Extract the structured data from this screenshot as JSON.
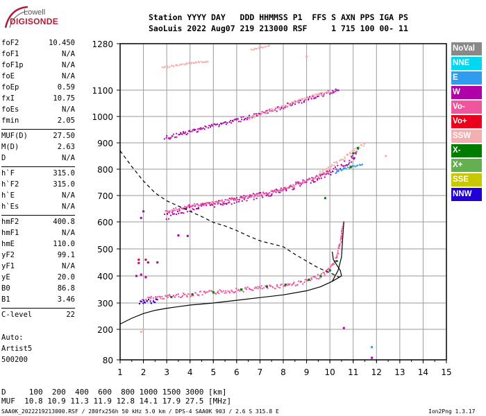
{
  "logo": {
    "line1": "Lowell",
    "line2": "DIGISONDE"
  },
  "header": {
    "row1": "Station YYYY DAY   DDD HHMMSS P1  FFS S AXN PPS IGA PS",
    "row2": "SaoLuis 2022 Aug07 219 213000 RSF     1 715 100 00- 11"
  },
  "params": [
    {
      "label": "foF2",
      "value": "10.450"
    },
    {
      "label": "foF1",
      "value": "N/A"
    },
    {
      "label": "foF1p",
      "value": "N/A"
    },
    {
      "label": "foE",
      "value": "N/A"
    },
    {
      "label": "foEp",
      "value": "0.59"
    },
    {
      "label": "fxI",
      "value": "10.75"
    },
    {
      "label": "foEs",
      "value": "N/A"
    },
    {
      "label": "fmin",
      "value": "2.05"
    },
    {
      "label": "MUF(D)",
      "value": "27.50"
    },
    {
      "label": "M(D)",
      "value": "2.63"
    },
    {
      "label": "D",
      "value": "N/A"
    },
    {
      "label": "h`F",
      "value": "315.0"
    },
    {
      "label": "h`F2",
      "value": "315.0"
    },
    {
      "label": "h`E",
      "value": "N/A"
    },
    {
      "label": "h`Es",
      "value": "N/A"
    },
    {
      "label": "hmF2",
      "value": "400.8"
    },
    {
      "label": "hmF1",
      "value": "N/A"
    },
    {
      "label": "hmE",
      "value": "110.0"
    },
    {
      "label": "yF2",
      "value": "99.1"
    },
    {
      "label": "yF1",
      "value": "N/A"
    },
    {
      "label": "yE",
      "value": "20.0"
    },
    {
      "label": "B0",
      "value": "86.8"
    },
    {
      "label": "B1",
      "value": "3.46"
    },
    {
      "label": "C-level",
      "value": "22"
    }
  ],
  "autoscale": {
    "line1": "Auto:",
    "line2": "Artist5",
    "line3": "500200"
  },
  "legend": [
    {
      "label": "NoVal",
      "color": "#888888"
    },
    {
      "label": "NNE",
      "color": "#00d8f0"
    },
    {
      "label": "E",
      "color": "#2f9cf0"
    },
    {
      "label": "W",
      "color": "#b000a8"
    },
    {
      "label": "Vo-",
      "color": "#f0549c"
    },
    {
      "label": "Vo+",
      "color": "#e8001c"
    },
    {
      "label": "SSW",
      "color": "#f4b0b0"
    },
    {
      "label": "X-",
      "color": "#007c00"
    },
    {
      "label": "X+",
      "color": "#64b050"
    },
    {
      "label": "SSE",
      "color": "#c8c800"
    },
    {
      "label": "NNW",
      "color": "#2000d8"
    }
  ],
  "bottom_table": {
    "row1": "D     100  200  400  600  800 1000 1500 3000 [km]",
    "row2": "MUF  10.8 10.9 11.3 11.9 12.8 14.1 17.9 27.5 [MHz]"
  },
  "footer": {
    "left": "SAA0K_2022219213000.RSF / 280fx256h 50 kHz 5.0 km / DPS-4 SAA0K 903 / 2.6 S 315.8 E",
    "right": "Ion2Png 1.3.17"
  },
  "chart_data": {
    "type": "scatter",
    "x_ticks": [
      1,
      2,
      3,
      4,
      5,
      6,
      7,
      8,
      9,
      10,
      11,
      12,
      13,
      14,
      15
    ],
    "y_ticks": [
      80,
      200,
      300,
      400,
      500,
      600,
      700,
      800,
      900,
      1000,
      1100,
      1280
    ],
    "xlim": [
      1,
      15
    ],
    "ylim": [
      80,
      1280
    ],
    "grid": true,
    "legend_placement": "right",
    "traces": [
      {
        "color": "#f0549c",
        "points": [
          [
            1.9,
            310
          ],
          [
            2.2,
            318
          ],
          [
            2.6,
            322
          ],
          [
            3.0,
            326
          ],
          [
            3.5,
            330
          ],
          [
            4.0,
            334
          ],
          [
            4.5,
            338
          ],
          [
            5.0,
            342
          ],
          [
            5.5,
            346
          ],
          [
            6.0,
            350
          ],
          [
            6.5,
            354
          ],
          [
            7.0,
            358
          ],
          [
            7.5,
            362
          ],
          [
            8.0,
            368
          ],
          [
            8.5,
            374
          ],
          [
            9.0,
            384
          ],
          [
            9.4,
            396
          ],
          [
            9.8,
            415
          ],
          [
            10.1,
            440
          ],
          [
            10.3,
            480
          ],
          [
            10.45,
            540
          ],
          [
            10.55,
            600
          ]
        ],
        "width": 6
      },
      {
        "color": "#b000a8",
        "points": [
          [
            2.9,
            620
          ],
          [
            3.5,
            640
          ],
          [
            4.0,
            655
          ],
          [
            4.5,
            662
          ],
          [
            5.0,
            670
          ],
          [
            5.5,
            678
          ],
          [
            6.0,
            686
          ],
          [
            6.5,
            694
          ],
          [
            7.0,
            704
          ],
          [
            7.5,
            714
          ],
          [
            8.0,
            724
          ],
          [
            8.5,
            740
          ],
          [
            9.0,
            756
          ],
          [
            9.5,
            772
          ],
          [
            10.0,
            792
          ],
          [
            10.5,
            815
          ],
          [
            10.9,
            840
          ],
          [
            11.2,
            870
          ]
        ],
        "width": 9
      },
      {
        "color": "#f0549c",
        "points": [
          [
            2.9,
            640
          ],
          [
            4.0,
            664
          ],
          [
            5.0,
            675
          ],
          [
            6.0,
            690
          ],
          [
            7.0,
            706
          ],
          [
            8.0,
            728
          ],
          [
            9.0,
            758
          ],
          [
            10.0,
            794
          ]
        ],
        "width": 4
      },
      {
        "color": "#b000a8",
        "points": [
          [
            2.9,
            920
          ],
          [
            3.5,
            932
          ],
          [
            4.0,
            945
          ],
          [
            4.5,
            958
          ],
          [
            5.0,
            968
          ],
          [
            5.5,
            978
          ],
          [
            6.0,
            988
          ],
          [
            6.5,
            1000
          ],
          [
            7.0,
            1010
          ],
          [
            7.5,
            1025
          ],
          [
            8.0,
            1040
          ],
          [
            8.5,
            1055
          ],
          [
            9.0,
            1068
          ],
          [
            9.5,
            1080
          ],
          [
            10.0,
            1096
          ],
          [
            10.4,
            1110
          ]
        ],
        "width": 6
      },
      {
        "color": "#f4b0b0",
        "points": [
          [
            6.5,
            995
          ],
          [
            7.0,
            1012
          ],
          [
            7.5,
            1028
          ],
          [
            8.0,
            1042
          ],
          [
            8.5,
            1058
          ],
          [
            9.0,
            1072
          ],
          [
            9.5,
            1086
          ],
          [
            10.0,
            1100
          ]
        ],
        "width": 4
      },
      {
        "color": "#f4b0b0",
        "points": [
          [
            9.5,
            790
          ],
          [
            10.0,
            810
          ],
          [
            10.5,
            840
          ],
          [
            11.0,
            870
          ],
          [
            11.5,
            900
          ]
        ],
        "width": 6
      },
      {
        "color": "#2f9cf0",
        "points": [
          [
            10.2,
            790
          ],
          [
            10.6,
            805
          ],
          [
            11.0,
            815
          ],
          [
            11.4,
            820
          ]
        ],
        "width": 3
      },
      {
        "color": "#2000d8",
        "points": [
          [
            1.8,
            305
          ],
          [
            2.2,
            308
          ],
          [
            2.6,
            312
          ]
        ],
        "width": 6
      },
      {
        "color": "#f4b0b0",
        "points": [
          [
            2.8,
            1190
          ],
          [
            3.5,
            1200
          ],
          [
            4.0,
            1208
          ],
          [
            4.8,
            1214
          ]
        ],
        "width": 2
      },
      {
        "color": "#f4b0b0",
        "points": [
          [
            6.6,
            1260
          ],
          [
            7.0,
            1268
          ],
          [
            7.4,
            1275
          ]
        ],
        "width": 2
      }
    ],
    "x_series_dots": [
      {
        "color": "#007c00",
        "points": [
          [
            3.2,
            322
          ],
          [
            4.1,
            332
          ],
          [
            5.0,
            340
          ],
          [
            6.2,
            350
          ],
          [
            7.3,
            360
          ],
          [
            8.1,
            368
          ],
          [
            9.1,
            386
          ],
          [
            9.6,
            400
          ],
          [
            10.0,
            420
          ],
          [
            10.3,
            455
          ],
          [
            9.8,
            690
          ],
          [
            10.9,
            808
          ],
          [
            11.0,
            860
          ],
          [
            11.2,
            880
          ]
        ]
      },
      {
        "color": "#b000a8",
        "points": [
          [
            1.7,
            400
          ],
          [
            1.9,
            405
          ],
          [
            2.1,
            395
          ],
          [
            1.8,
            448
          ],
          [
            2.2,
            450
          ],
          [
            2.6,
            450
          ]
        ]
      },
      {
        "color": "#e8001c",
        "points": [
          [
            1.8,
            460
          ],
          [
            2.1,
            460
          ]
        ]
      },
      {
        "color": "#b000a8",
        "points": [
          [
            2.0,
            640
          ],
          [
            1.9,
            615
          ],
          [
            3.5,
            550
          ],
          [
            3.9,
            548
          ],
          [
            10.6,
            205
          ]
        ]
      },
      {
        "color": "#2f9cf0",
        "points": [
          [
            11.8,
            130
          ]
        ]
      },
      {
        "color": "#b000a8",
        "points": [
          [
            11.8,
            88
          ]
        ]
      },
      {
        "color": "#f4b0b0",
        "points": [
          [
            2.0,
            200
          ],
          [
            1.9,
            190
          ],
          [
            12.4,
            850
          ],
          [
            9.0,
            1230
          ]
        ]
      }
    ],
    "profile_solid": [
      [
        1.0,
        220
      ],
      [
        1.5,
        242
      ],
      [
        2.0,
        260
      ],
      [
        2.5,
        272
      ],
      [
        3.0,
        280
      ],
      [
        4.0,
        292
      ],
      [
        5.0,
        300
      ],
      [
        6.0,
        310
      ],
      [
        7.0,
        320
      ],
      [
        8.0,
        330
      ],
      [
        9.0,
        345
      ],
      [
        9.6,
        360
      ],
      [
        10.1,
        380
      ],
      [
        10.5,
        400
      ],
      [
        10.45,
        420
      ],
      [
        10.3,
        440
      ],
      [
        10.15,
        460
      ],
      [
        10.1,
        490
      ]
    ],
    "profile_solid_upper": [
      [
        10.1,
        380
      ],
      [
        10.35,
        420
      ],
      [
        10.5,
        470
      ],
      [
        10.55,
        540
      ],
      [
        10.6,
        600
      ]
    ],
    "profile_dashed": [
      [
        1.0,
        870
      ],
      [
        1.5,
        810
      ],
      [
        2.0,
        755
      ],
      [
        2.5,
        710
      ],
      [
        3.0,
        680
      ],
      [
        3.5,
        660
      ],
      [
        4.0,
        640
      ],
      [
        4.5,
        620
      ],
      [
        5.0,
        598
      ],
      [
        5.5,
        585
      ],
      [
        6.0,
        568
      ],
      [
        6.5,
        548
      ],
      [
        7.0,
        530
      ],
      [
        7.5,
        519
      ],
      [
        8.0,
        508
      ],
      [
        8.5,
        480
      ],
      [
        9.0,
        455
      ],
      [
        9.5,
        430
      ],
      [
        10.0,
        412
      ],
      [
        10.4,
        395
      ]
    ]
  }
}
